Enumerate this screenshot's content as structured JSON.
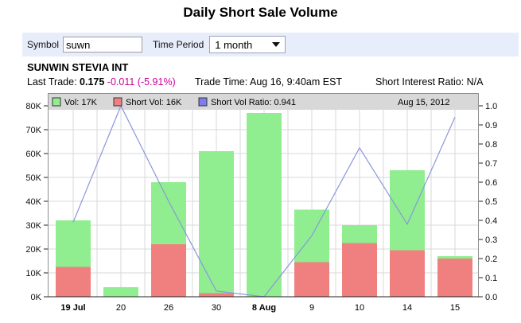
{
  "page": {
    "title": "Daily Short Sale Volume"
  },
  "form": {
    "symbol_label": "Symbol",
    "symbol_value": "suwn",
    "time_period_label": "Time Period",
    "time_period_value": "1 month"
  },
  "quote": {
    "company": "SUNWIN STEVIA INT",
    "last_trade_label": "Last Trade:",
    "last_trade_value": "0.175",
    "change_text": "-0.011 (-5.91%)",
    "change_color": "#cc0099",
    "trade_time_text": "Trade Time: Aug 16, 9:40am EST",
    "short_interest_text": "Short Interest Ratio: N/A"
  },
  "chart_data": {
    "type": "bar",
    "title": "",
    "categories": [
      "19 Jul",
      "20",
      "26",
      "30",
      "8 Aug",
      "9",
      "10",
      "14",
      "15"
    ],
    "bold_categories": [
      "19 Jul",
      "8 Aug"
    ],
    "unit": "thousands of shares (K)",
    "series": [
      {
        "name": "Vol",
        "type": "bar",
        "axis": "left",
        "color": "#90ee90",
        "values": [
          32,
          4,
          48,
          61,
          77,
          36.5,
          30,
          53,
          17
        ]
      },
      {
        "name": "Short Vol",
        "type": "bar",
        "axis": "left",
        "color": "#f08080",
        "values": [
          12.5,
          0,
          22,
          1.5,
          0,
          14.5,
          22.5,
          19.5,
          16
        ]
      },
      {
        "name": "Short Vol Ratio",
        "type": "line",
        "axis": "right",
        "color": "#8c96dc",
        "values": [
          0.39,
          1.0,
          0.5,
          0.03,
          0.0,
          0.32,
          0.78,
          0.38,
          0.941
        ]
      }
    ],
    "left_axis": {
      "min": 0,
      "max": 80,
      "tick_labels": [
        "0K",
        "10K",
        "20K",
        "30K",
        "40K",
        "50K",
        "60K",
        "70K",
        "80K"
      ]
    },
    "right_axis": {
      "min": 0,
      "max": 1,
      "tick_labels": [
        "0.0",
        "0.1",
        "0.2",
        "0.3",
        "0.4",
        "0.5",
        "0.6",
        "0.7",
        "0.8",
        "0.9",
        "1.0"
      ]
    },
    "legend_position": "top",
    "legend": {
      "items": [
        {
          "label": "Vol: 17K",
          "color": "#90ee90"
        },
        {
          "label": "Short Vol: 16K",
          "color": "#f08080"
        },
        {
          "label": "Short Vol Ratio: 0.941",
          "color": "#7d7dee"
        }
      ],
      "date": "Aug 15, 2012"
    },
    "grid": true,
    "colors": {
      "legend_bg": "#d8d8d8",
      "grid": "#d9d9d9",
      "plot_border": "#8f8f8f",
      "axis_line": "#222222",
      "label_text": "#111111"
    }
  }
}
